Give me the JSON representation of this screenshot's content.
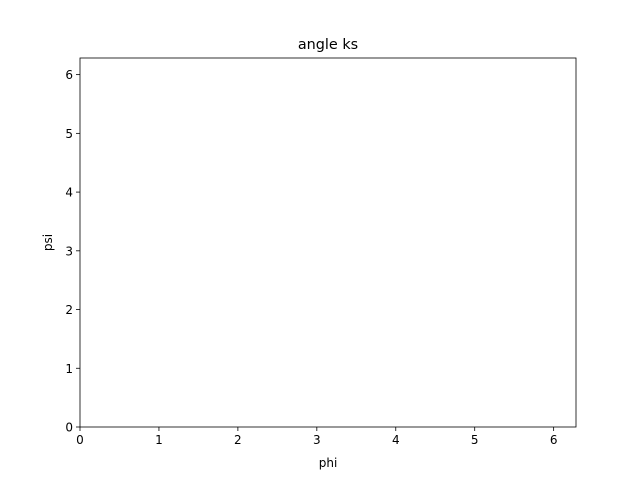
{
  "chart_data": {
    "type": "scatter",
    "title": "angle ks",
    "xlabel": "phi",
    "ylabel": "psi",
    "xlim": [
      0,
      6.283185307179586
    ],
    "ylim": [
      0,
      6.283185307179586
    ],
    "xticks": [
      0,
      1,
      2,
      3,
      4,
      5,
      6
    ],
    "yticks": [
      0,
      1,
      2,
      3,
      4,
      5,
      6
    ],
    "grid": false,
    "series": [
      {
        "x": [],
        "y": []
      }
    ]
  }
}
